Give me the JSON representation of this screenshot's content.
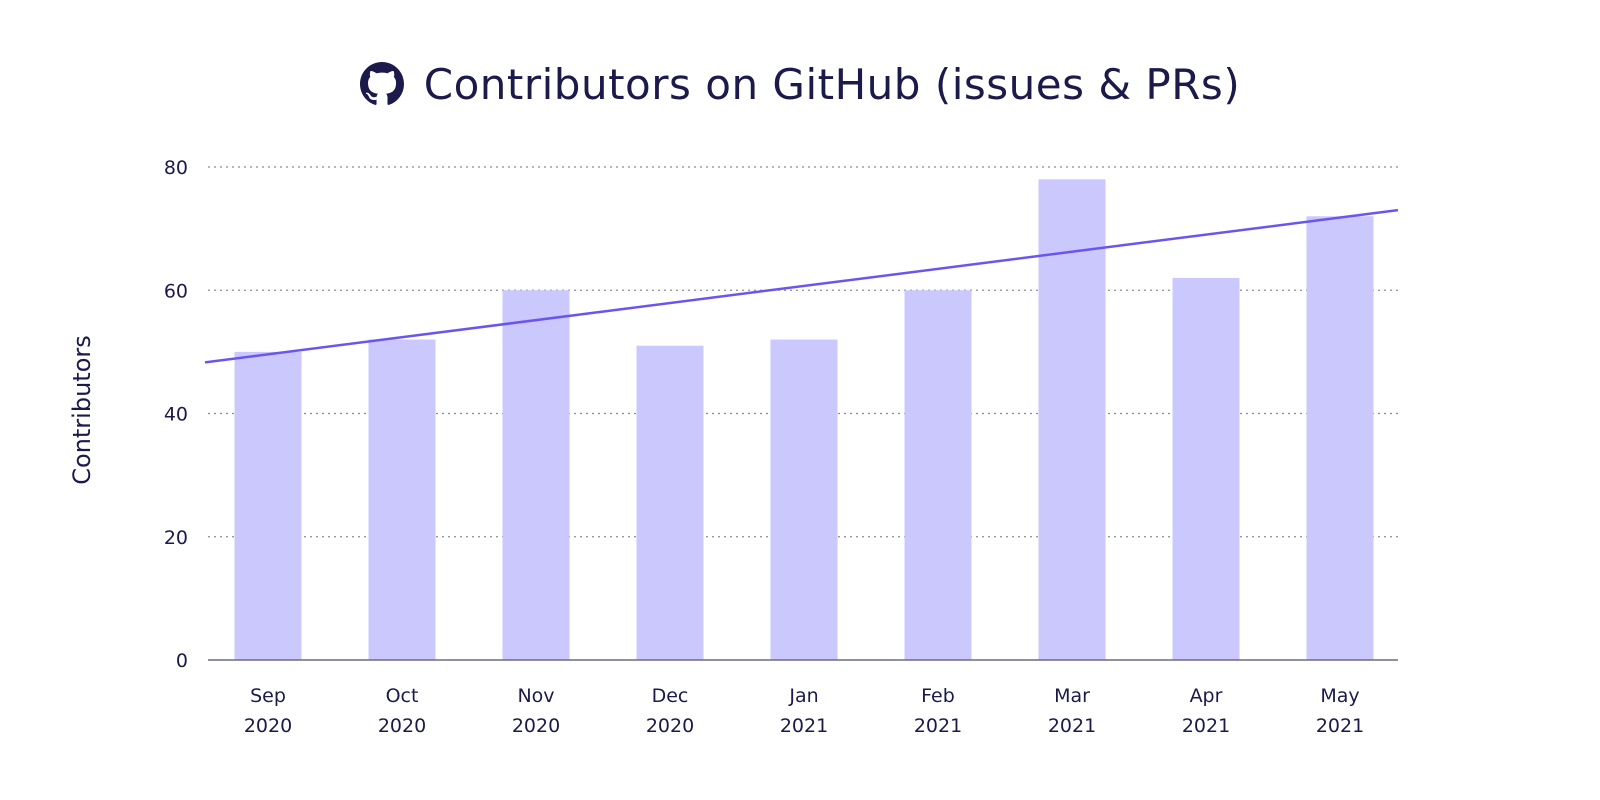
{
  "chart_data": {
    "type": "bar",
    "title": "Contributors on GitHub (issues & PRs)",
    "title_icon": "github-icon",
    "ylabel": "Contributors",
    "xlabel": "",
    "ylim": [
      0,
      80
    ],
    "yticks": [
      "0",
      "20",
      "40",
      "60",
      "80"
    ],
    "grid": true,
    "categories": [
      [
        "Sep",
        "2020"
      ],
      [
        "Oct",
        "2020"
      ],
      [
        "Nov",
        "2020"
      ],
      [
        "Dec",
        "2020"
      ],
      [
        "Jan",
        "2021"
      ],
      [
        "Feb",
        "2021"
      ],
      [
        "Mar",
        "2021"
      ],
      [
        "Apr",
        "2021"
      ],
      [
        "May",
        "2021"
      ]
    ],
    "values": [
      50,
      52,
      60,
      51,
      52,
      60,
      78,
      62,
      72
    ],
    "trendline": {
      "type": "linear",
      "start_value": 48.3,
      "end_value": 73.0
    },
    "colors": {
      "bar": "#cbc8fd",
      "trendline": "#6b55f0",
      "text": "#1b1a4a",
      "grid": "#8a8a9a",
      "axis": "#6b6b80"
    }
  }
}
